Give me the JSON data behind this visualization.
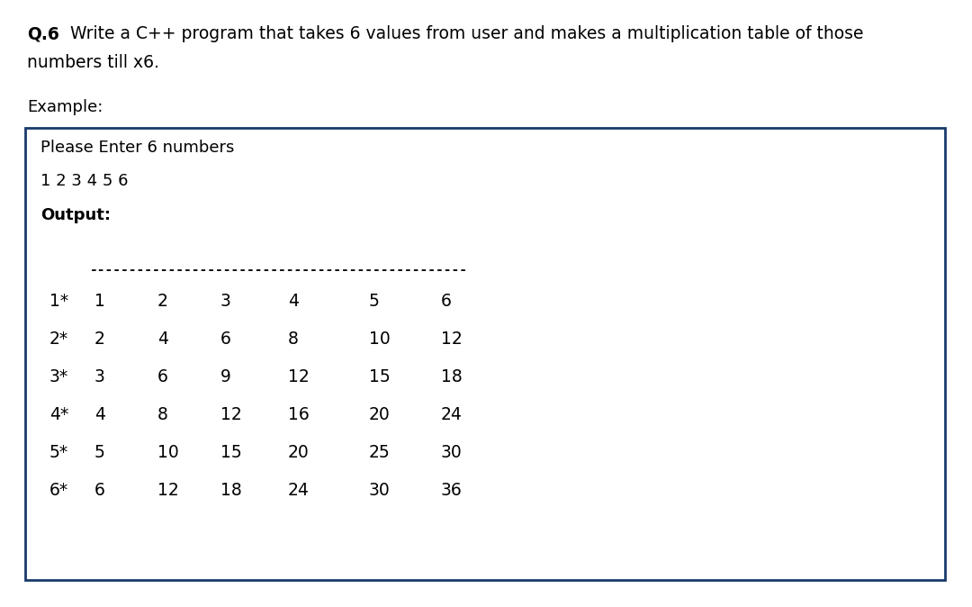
{
  "title_bold": "Q.6",
  "title_rest": " Write a C++ program that takes 6 values from user and makes a multiplication table of those",
  "title_line2": "numbers till x6.",
  "example_label": "Example:",
  "prompt_line": "Please Enter 6 numbers",
  "input_line": "1 2 3 4 5 6",
  "output_label": "Output:",
  "dashes": "------------------------------------------------",
  "rows": [
    [
      "1*",
      "1",
      "2",
      "3",
      "4",
      "5",
      "6"
    ],
    [
      "2*",
      "2",
      "4",
      "6",
      "8",
      "10",
      "12"
    ],
    [
      "3*",
      "3",
      "6",
      "9",
      "12",
      "15",
      "18"
    ],
    [
      "4*",
      "4",
      "8",
      "12",
      "16",
      "20",
      "24"
    ],
    [
      "5*",
      "5",
      "10",
      "15",
      "20",
      "25",
      "30"
    ],
    [
      "6*",
      "6",
      "12",
      "18",
      "24",
      "30",
      "36"
    ]
  ],
  "col_x_inch": [
    0.55,
    1.05,
    1.75,
    2.45,
    3.2,
    4.1,
    4.9
  ],
  "bg_color": "#ffffff",
  "text_color": "#000000",
  "box_edge_color": "#1a3a6b",
  "font_size_title": 13.5,
  "font_size_body": 13.0,
  "font_size_table": 13.5,
  "font_size_dashes": 10.5
}
